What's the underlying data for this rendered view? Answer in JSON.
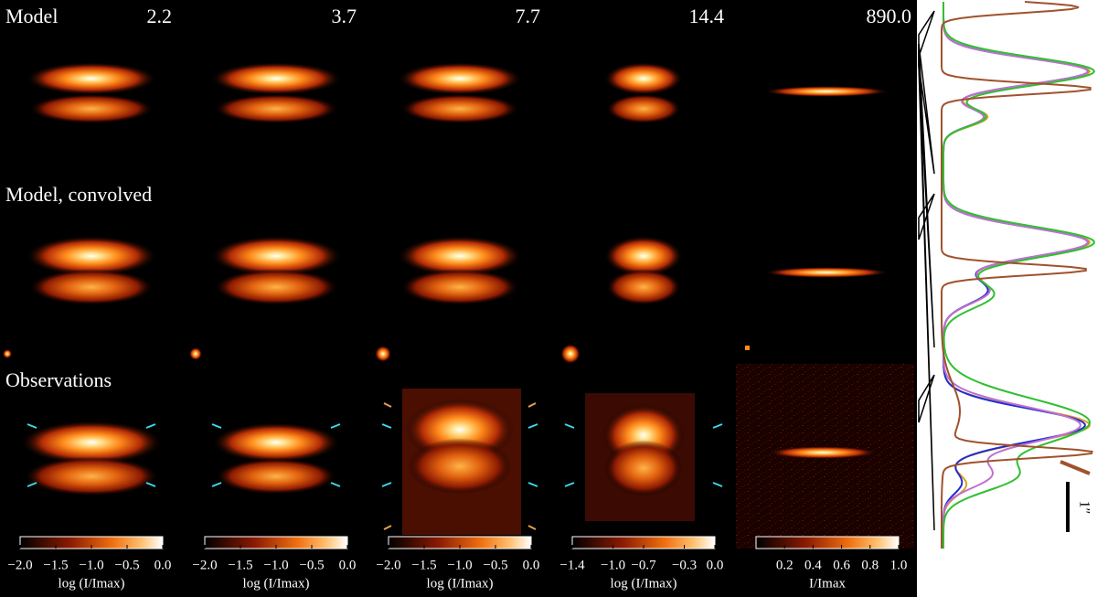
{
  "figure": {
    "row_labels": [
      "Model",
      "Model, convolved",
      "Observations"
    ],
    "column_labels": [
      "2.2",
      "3.7",
      "7.7",
      "14.4",
      "890.0"
    ],
    "colorbars": [
      {
        "label": "log (I/Imax)",
        "lim": [
          -2,
          0
        ],
        "ticks": [
          {
            "value": -2,
            "label": "−2.0"
          },
          {
            "value": -1.5,
            "label": "−1.5"
          },
          {
            "value": -1,
            "label": "−1.0"
          },
          {
            "value": -0.5,
            "label": "−0.5"
          },
          {
            "value": 0,
            "label": "0.0"
          }
        ]
      },
      {
        "label": "log (I/Imax)",
        "lim": [
          -2,
          0
        ],
        "ticks": [
          {
            "value": -2,
            "label": "−2.0"
          },
          {
            "value": -1.5,
            "label": "−1.5"
          },
          {
            "value": -1,
            "label": "−1.0"
          },
          {
            "value": -0.5,
            "label": "−0.5"
          },
          {
            "value": 0,
            "label": "0.0"
          }
        ]
      },
      {
        "label": "log (I/Imax)",
        "lim": [
          -2,
          0
        ],
        "ticks": [
          {
            "value": -2,
            "label": "−2.0"
          },
          {
            "value": -1.5,
            "label": "−1.5"
          },
          {
            "value": -1,
            "label": "−1.0"
          },
          {
            "value": -0.5,
            "label": "−0.5"
          },
          {
            "value": 0,
            "label": "0.0"
          }
        ]
      },
      {
        "label": "log (I/Imax)",
        "lim": [
          -1.4,
          0
        ],
        "ticks": [
          {
            "value": -1.4,
            "label": "−1.4"
          },
          {
            "value": -1,
            "label": "−1.0"
          },
          {
            "value": -0.7,
            "label": "−0.7"
          },
          {
            "value": -0.3,
            "label": "−0.3"
          },
          {
            "value": 0,
            "label": "0.0"
          }
        ]
      },
      {
        "label": "I/Imax",
        "lim": [
          0,
          1
        ],
        "ticks": [
          0.2,
          0.4,
          0.6,
          0.8,
          {
            "value": 1,
            "label": "1.0"
          }
        ]
      }
    ],
    "scale_bar_label": "1″"
  }
}
